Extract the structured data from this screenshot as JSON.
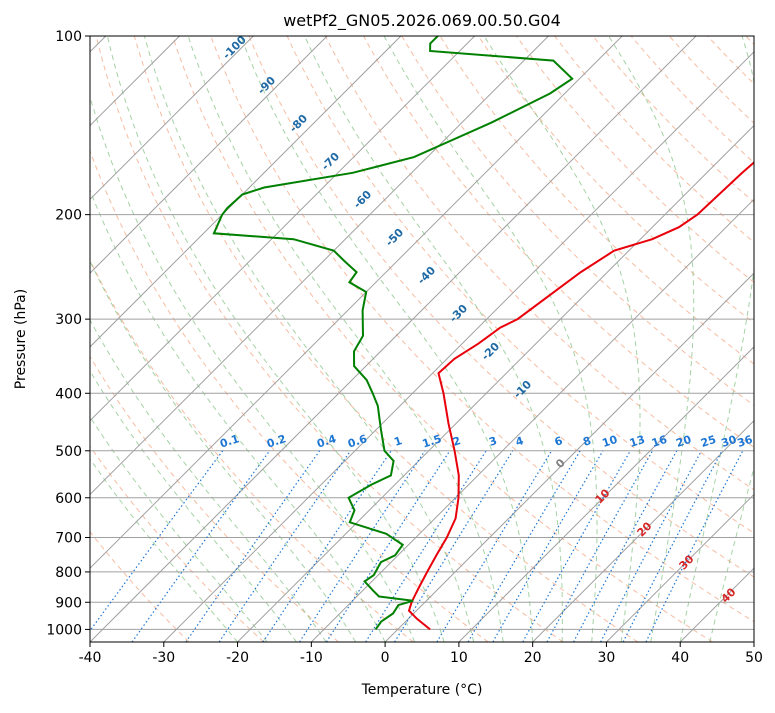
{
  "chart_data": {
    "type": "line",
    "title": "wetPf2_GN05.2026.069.00.50.G04",
    "xlabel": "Temperature (°C)",
    "ylabel": "Pressure (hPa)",
    "xlim": [
      -40,
      50
    ],
    "ylim": [
      1050,
      100
    ],
    "x_ticks": [
      -40,
      -30,
      -20,
      -10,
      0,
      10,
      20,
      30,
      40,
      50
    ],
    "y_ticks": [
      1000,
      900,
      800,
      700,
      600,
      500,
      400,
      300,
      200,
      100
    ],
    "colors": {
      "temperature": "#e8000b",
      "dewpoint": "#008000",
      "isotherm": "#a0a0a0",
      "isobar": "#a0a0a0",
      "dry_adiabat": "#f4a582",
      "moist_adiabat": "#7fbf7f",
      "mixing_ratio": "#1f77d4",
      "isotherm_label": "#1f6aa5",
      "theta_label": "#d62728"
    },
    "series": [
      {
        "name": "Temperature",
        "points": [
          [
            1000,
            4.4
          ],
          [
            960,
            1.2
          ],
          [
            930,
            -1.0
          ],
          [
            900,
            -1.8
          ],
          [
            880,
            -2.2
          ],
          [
            850,
            -2.8
          ],
          [
            800,
            -3.8
          ],
          [
            750,
            -4.8
          ],
          [
            700,
            -5.8
          ],
          [
            650,
            -7.2
          ],
          [
            600,
            -9.6
          ],
          [
            550,
            -12.6
          ],
          [
            500,
            -16.5
          ],
          [
            450,
            -21.0
          ],
          [
            400,
            -25.8
          ],
          [
            370,
            -29.2
          ],
          [
            350,
            -29.0
          ],
          [
            330,
            -27.8
          ],
          [
            310,
            -27.0
          ],
          [
            300,
            -25.8
          ],
          [
            250,
            -23.6
          ],
          [
            230,
            -22.0
          ],
          [
            220,
            -18.4
          ],
          [
            210,
            -16.4
          ],
          [
            200,
            -15.6
          ],
          [
            170,
            -15.2
          ],
          [
            150,
            -14.6
          ],
          [
            130,
            -13.2
          ],
          [
            115,
            -9.0
          ],
          [
            105,
            -2.0
          ],
          [
            100,
            2.0
          ]
        ]
      },
      {
        "name": "Dewpoint",
        "points": [
          [
            1000,
            -3.0
          ],
          [
            970,
            -3.3
          ],
          [
            940,
            -2.8
          ],
          [
            910,
            -3.2
          ],
          [
            895,
            -1.8
          ],
          [
            880,
            -7.0
          ],
          [
            860,
            -8.6
          ],
          [
            830,
            -11.0
          ],
          [
            810,
            -10.6
          ],
          [
            790,
            -11.0
          ],
          [
            770,
            -11.4
          ],
          [
            750,
            -10.4
          ],
          [
            720,
            -10.8
          ],
          [
            690,
            -14.5
          ],
          [
            660,
            -21.0
          ],
          [
            630,
            -22.0
          ],
          [
            600,
            -24.5
          ],
          [
            570,
            -23.2
          ],
          [
            550,
            -21.8
          ],
          [
            520,
            -23.4
          ],
          [
            500,
            -26.0
          ],
          [
            460,
            -29.4
          ],
          [
            420,
            -33.0
          ],
          [
            400,
            -35.4
          ],
          [
            380,
            -38.0
          ],
          [
            360,
            -41.6
          ],
          [
            340,
            -43.6
          ],
          [
            320,
            -44.5
          ],
          [
            290,
            -48.0
          ],
          [
            270,
            -50.0
          ],
          [
            260,
            -53.6
          ],
          [
            250,
            -54.0
          ],
          [
            240,
            -57.0
          ],
          [
            230,
            -60.0
          ],
          [
            220,
            -67.0
          ],
          [
            215,
            -78.6
          ],
          [
            200,
            -80.0
          ],
          [
            195,
            -80.2
          ],
          [
            185,
            -80.0
          ],
          [
            180,
            -78.0
          ],
          [
            170,
            -68.0
          ],
          [
            160,
            -61.8
          ],
          [
            140,
            -56.0
          ],
          [
            125,
            -52.0
          ],
          [
            118,
            -51.0
          ],
          [
            110,
            -56.0
          ],
          [
            106,
            -74.0
          ],
          [
            103,
            -75.0
          ],
          [
            100,
            -75.0
          ]
        ]
      }
    ],
    "isotherm_labels": [
      "-100",
      "-90",
      "-80",
      "-70",
      "-60",
      "-50",
      "-40",
      "-30",
      "-20",
      "-10",
      "0",
      "10",
      "20",
      "30",
      "40"
    ],
    "isotherm_label_values": [
      -100,
      -90,
      -80,
      -70,
      -60,
      -50,
      -40,
      -30,
      -20,
      -10
    ],
    "theta_label_texts": [
      "0",
      "10",
      "20",
      "30",
      "40"
    ],
    "mixing_ratio_labels": [
      "0.1",
      "0.2",
      "0.4",
      "0.6",
      "1",
      "1.5",
      "2",
      "3",
      "4",
      "6",
      "8",
      "10",
      "13",
      "16",
      "20",
      "25",
      "30",
      "36"
    ],
    "mixing_ratio_values": [
      0.1,
      0.2,
      0.4,
      0.6,
      1,
      1.5,
      2,
      3,
      4,
      6,
      8,
      10,
      13,
      16,
      20,
      25,
      30,
      36
    ]
  }
}
